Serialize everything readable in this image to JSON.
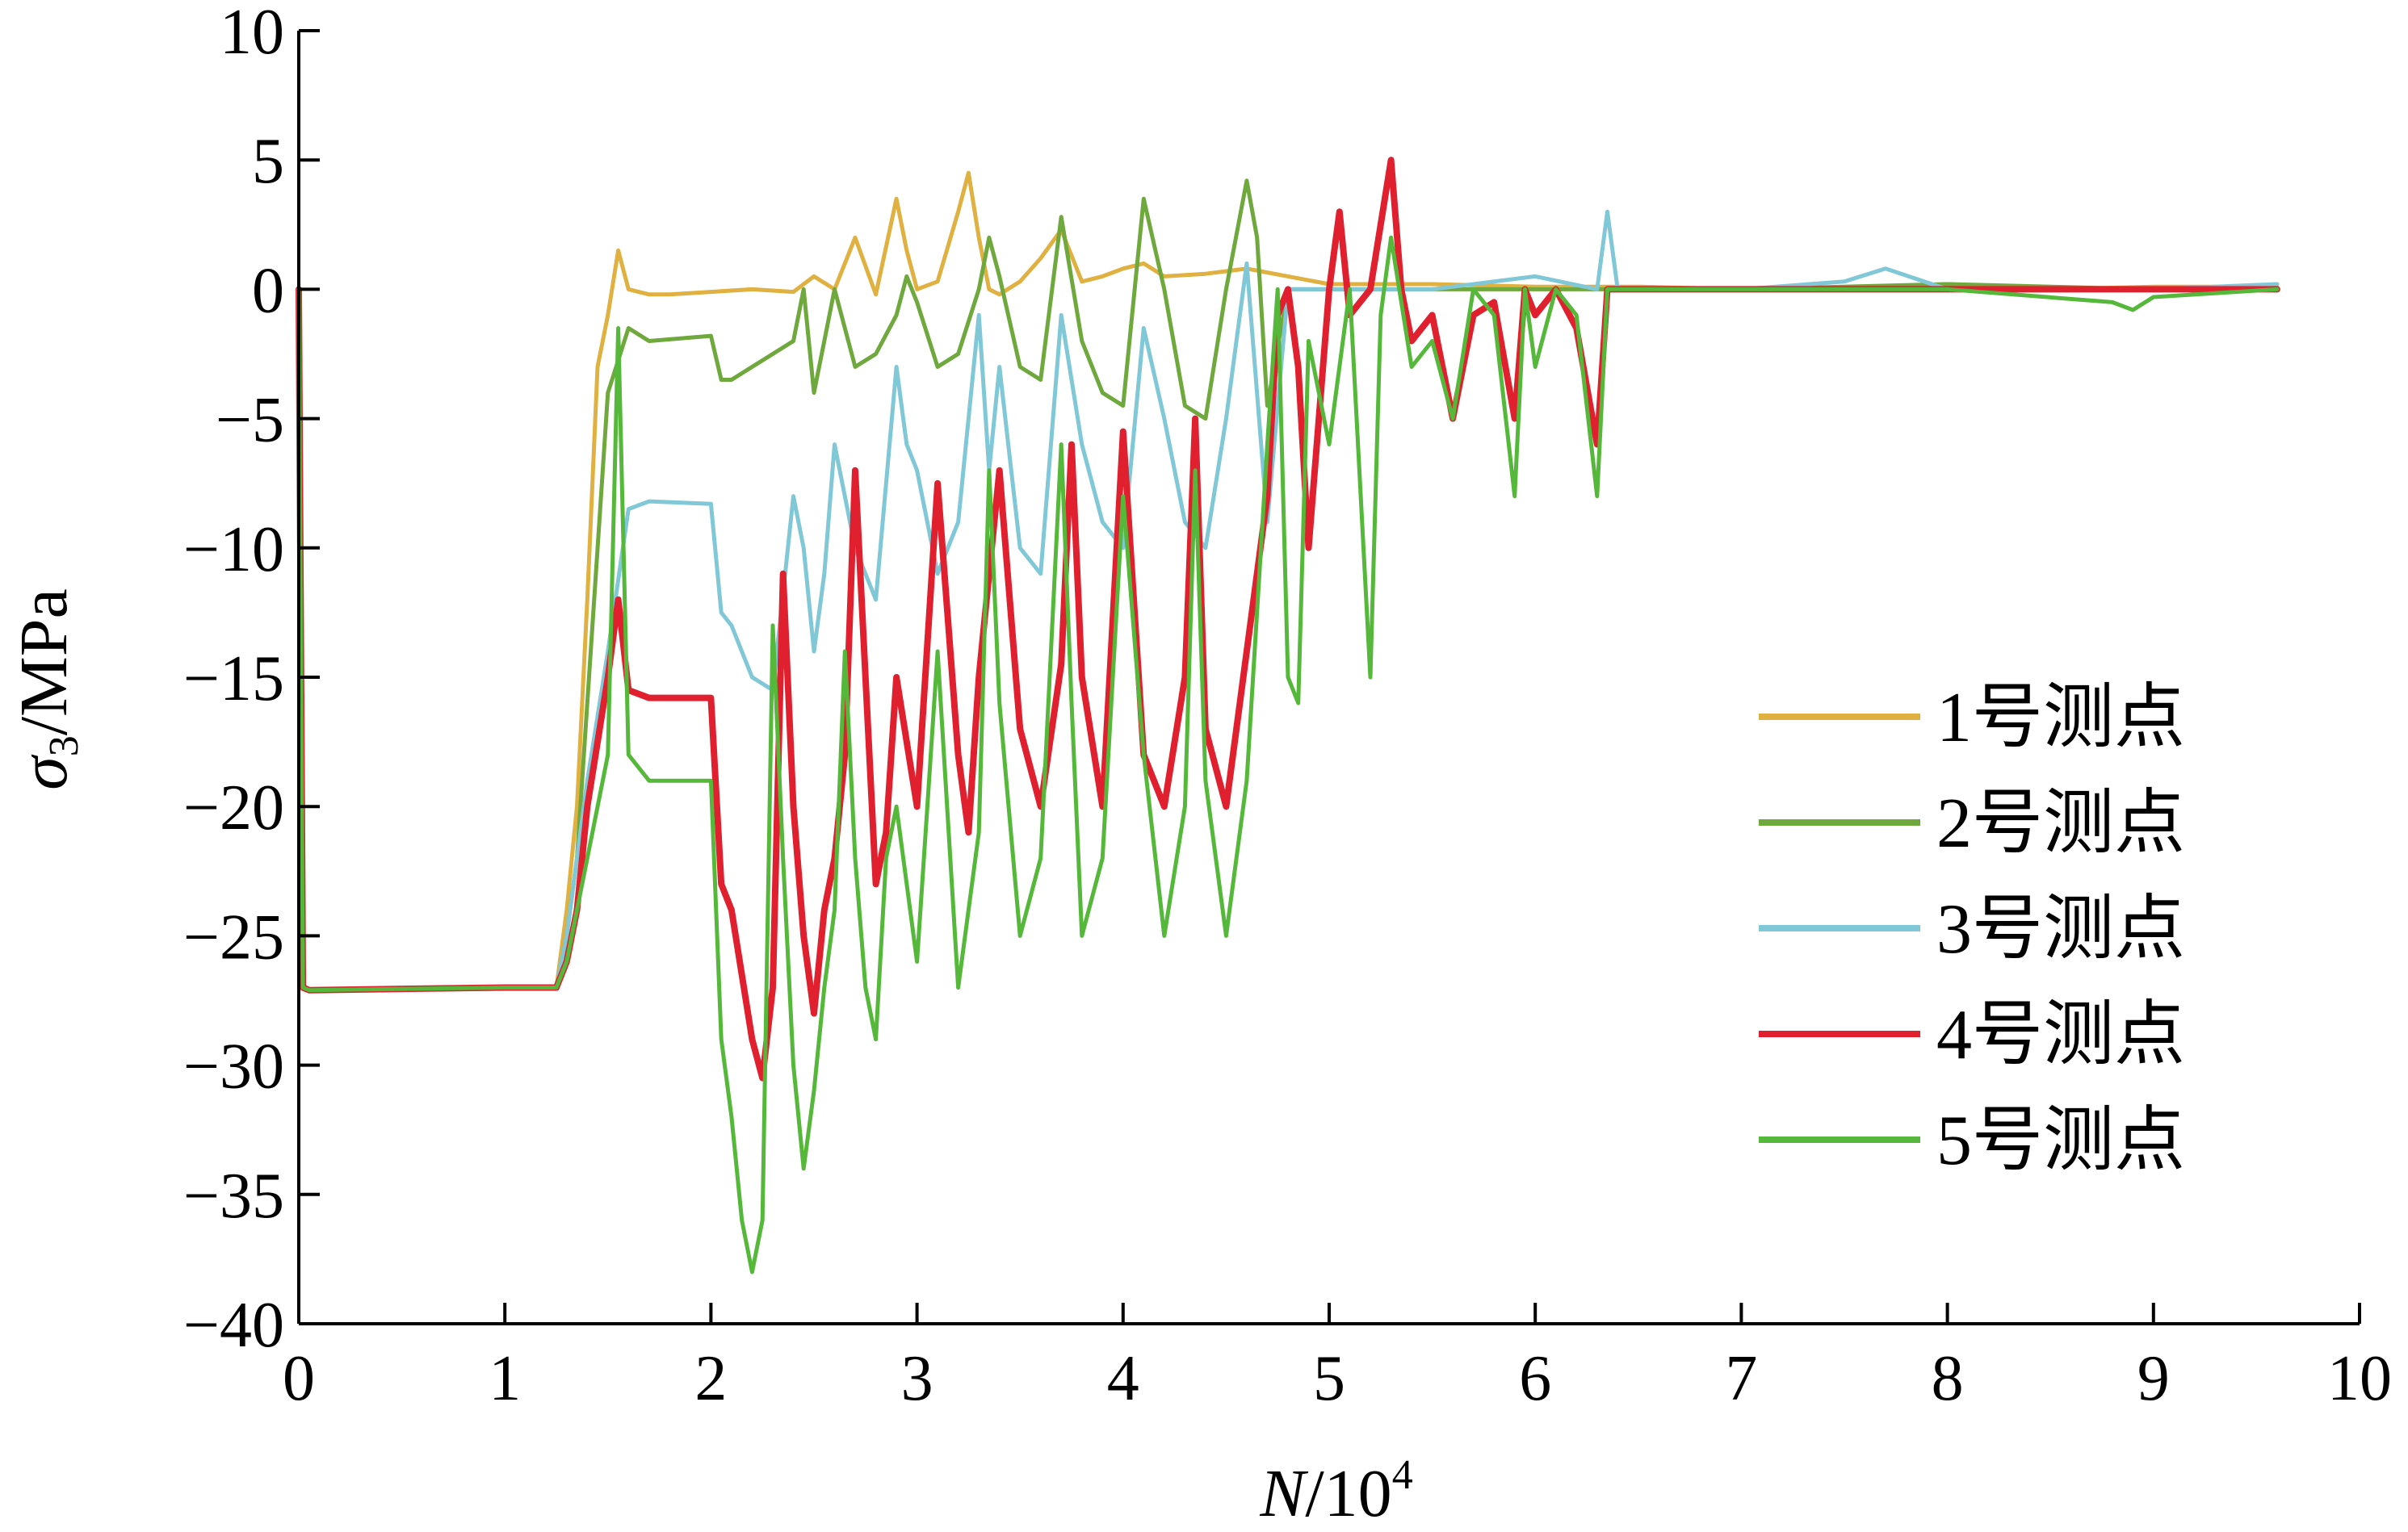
{
  "chart_data": {
    "type": "line",
    "xlabel": {
      "var": "N",
      "unit": "/10",
      "exp": "4"
    },
    "ylabel": {
      "var": "σ",
      "sub": "3",
      "unit": "/MPa"
    },
    "xlim": [
      0,
      10
    ],
    "ylim": [
      -40,
      10
    ],
    "xticks": [
      "0",
      "1",
      "2",
      "3",
      "4",
      "5",
      "6",
      "7",
      "8",
      "9",
      "10"
    ],
    "yticks": [
      "10",
      "5",
      "0",
      "−5",
      "−10",
      "−15",
      "−20",
      "−25",
      "−30",
      "−35",
      "−40"
    ],
    "grid": false,
    "legend_position": "right-middle",
    "series": [
      {
        "name": "1号测点",
        "color": "#E0B040",
        "x": [
          0,
          0.02,
          0.05,
          1.0,
          1.25,
          1.3,
          1.35,
          1.4,
          1.45,
          1.5,
          1.55,
          1.6,
          1.7,
          1.8,
          2.0,
          2.2,
          2.4,
          2.5,
          2.6,
          2.7,
          2.8,
          2.9,
          2.95,
          3.0,
          3.1,
          3.2,
          3.25,
          3.3,
          3.35,
          3.4,
          3.5,
          3.6,
          3.7,
          3.8,
          3.9,
          4.0,
          4.1,
          4.2,
          4.4,
          4.6,
          4.8,
          5.0,
          5.2,
          5.5,
          6.0,
          6.5,
          7.0,
          7.5,
          8.0,
          8.5,
          9.0,
          9.6
        ],
        "y": [
          0,
          -26.9,
          -27.1,
          -27.0,
          -27.0,
          -24,
          -20,
          -12,
          -3,
          -1,
          1.5,
          0,
          -0.2,
          -0.2,
          -0.1,
          0,
          -0.1,
          0.5,
          0,
          2.0,
          -0.2,
          3.5,
          1.5,
          0,
          0.3,
          3.0,
          4.5,
          2.0,
          0,
          -0.2,
          0.3,
          1.2,
          2.3,
          0.3,
          0.5,
          0.8,
          1.0,
          0.5,
          0.6,
          0.8,
          0.5,
          0.2,
          0.2,
          0.2,
          0.1,
          0.1,
          0,
          0,
          0.2,
          0,
          0.1,
          0.1
        ]
      },
      {
        "name": "2号测点",
        "color": "#6FA83C",
        "x": [
          0,
          0.02,
          0.05,
          1.0,
          1.25,
          1.3,
          1.35,
          1.4,
          1.5,
          1.6,
          1.7,
          2.0,
          2.05,
          2.1,
          2.2,
          2.3,
          2.4,
          2.45,
          2.5,
          2.55,
          2.6,
          2.7,
          2.8,
          2.9,
          2.95,
          3.0,
          3.1,
          3.2,
          3.3,
          3.35,
          3.4,
          3.5,
          3.6,
          3.7,
          3.8,
          3.9,
          4.0,
          4.1,
          4.2,
          4.3,
          4.4,
          4.5,
          4.6,
          4.65,
          4.7,
          4.8,
          5.0,
          5.5,
          6.0,
          6.5,
          7.0,
          8.0,
          9.0,
          9.6
        ],
        "y": [
          0,
          -27.0,
          -27.1,
          -27.0,
          -27.0,
          -25,
          -22,
          -16,
          -4,
          -1.5,
          -2.0,
          -1.8,
          -3.5,
          -3.5,
          -3.0,
          -2.5,
          -2.0,
          0,
          -4.0,
          -2.0,
          0,
          -3.0,
          -2.5,
          -1.0,
          0.5,
          -0.5,
          -3.0,
          -2.5,
          0,
          2.0,
          0.5,
          -3.0,
          -3.5,
          2.8,
          -2.0,
          -4.0,
          -4.5,
          3.5,
          0,
          -4.5,
          -5.0,
          0,
          4.2,
          2.0,
          -4.5,
          0,
          0,
          0,
          0,
          0,
          0,
          0.2,
          0,
          0
        ]
      },
      {
        "name": "3号测点",
        "color": "#80C8D8",
        "x": [
          0,
          0.02,
          0.05,
          1.0,
          1.25,
          1.3,
          1.35,
          1.4,
          1.5,
          1.6,
          1.7,
          2.0,
          2.05,
          2.1,
          2.2,
          2.3,
          2.4,
          2.45,
          2.5,
          2.55,
          2.6,
          2.7,
          2.8,
          2.9,
          2.95,
          3.0,
          3.1,
          3.2,
          3.3,
          3.35,
          3.4,
          3.5,
          3.6,
          3.7,
          3.8,
          3.9,
          4.0,
          4.1,
          4.2,
          4.3,
          4.4,
          4.5,
          4.6,
          4.7,
          4.8,
          5.0,
          5.5,
          6.0,
          6.3,
          6.35,
          6.4,
          6.5,
          7.0,
          7.5,
          7.7,
          8.0,
          9.0,
          9.6
        ],
        "y": [
          0,
          -27.0,
          -27.1,
          -27.0,
          -27.0,
          -25,
          -22,
          -19,
          -14,
          -8.5,
          -8.2,
          -8.3,
          -12.5,
          -13.0,
          -15.0,
          -15.5,
          -8.0,
          -10.0,
          -14.0,
          -11.0,
          -6.0,
          -10.0,
          -12.0,
          -3.0,
          -6.0,
          -7.0,
          -11.0,
          -9.0,
          -1.0,
          -7.0,
          -3.0,
          -10.0,
          -11.0,
          -1.0,
          -6.0,
          -9.0,
          -10.0,
          -1.5,
          -5.0,
          -9.0,
          -10.0,
          -5.0,
          1.0,
          -9.0,
          0,
          0,
          0,
          0.5,
          0,
          3.0,
          0,
          0,
          0,
          0.3,
          0.8,
          0,
          0,
          0.2
        ]
      },
      {
        "name": "4号测点",
        "color": "#E0202E",
        "x": [
          0,
          0.02,
          0.05,
          1.0,
          1.25,
          1.3,
          1.35,
          1.4,
          1.5,
          1.55,
          1.6,
          1.7,
          1.8,
          2.0,
          2.05,
          2.1,
          2.2,
          2.25,
          2.3,
          2.35,
          2.4,
          2.45,
          2.5,
          2.55,
          2.6,
          2.65,
          2.7,
          2.75,
          2.8,
          2.85,
          2.9,
          3.0,
          3.1,
          3.2,
          3.25,
          3.3,
          3.4,
          3.5,
          3.6,
          3.7,
          3.75,
          3.8,
          3.9,
          4.0,
          4.1,
          4.2,
          4.3,
          4.35,
          4.4,
          4.5,
          4.6,
          4.7,
          4.75,
          4.8,
          4.85,
          4.9,
          5.0,
          5.05,
          5.1,
          5.2,
          5.3,
          5.35,
          5.4,
          5.5,
          5.6,
          5.7,
          5.8,
          5.9,
          5.95,
          6.0,
          6.1,
          6.2,
          6.3,
          6.35,
          6.4,
          6.5,
          7.0,
          8.0,
          9.0,
          9.6
        ],
        "y": [
          0,
          -27.0,
          -27.1,
          -27.0,
          -27.0,
          -26,
          -24,
          -20,
          -15,
          -12,
          -15.5,
          -15.8,
          -15.8,
          -15.8,
          -23.0,
          -24.0,
          -29.0,
          -30.5,
          -27.0,
          -11.0,
          -20.0,
          -25.0,
          -28.0,
          -24.0,
          -22.0,
          -18.0,
          -7.0,
          -15.0,
          -23.0,
          -21.0,
          -15.0,
          -20.0,
          -7.5,
          -18.0,
          -21.0,
          -15.0,
          -7.0,
          -17.0,
          -20.0,
          -14.5,
          -6.0,
          -15.0,
          -20.0,
          -5.5,
          -18.0,
          -20.0,
          -15.0,
          -5.0,
          -17.0,
          -20.0,
          -14.0,
          -8.0,
          -1.0,
          0,
          -3.0,
          -10.0,
          0,
          3.0,
          -1.0,
          0,
          5.0,
          0,
          -2.0,
          -1.0,
          -5.0,
          -1.0,
          -0.5,
          -5.0,
          0,
          -1.0,
          0,
          -1.5,
          -6.0,
          0,
          0,
          0,
          0,
          0,
          0,
          0
        ]
      },
      {
        "name": "5号测点",
        "color": "#55B83A",
        "x": [
          0,
          0.02,
          0.05,
          1.0,
          1.25,
          1.3,
          1.35,
          1.4,
          1.5,
          1.55,
          1.6,
          1.7,
          1.8,
          2.0,
          2.05,
          2.1,
          2.15,
          2.2,
          2.25,
          2.3,
          2.35,
          2.4,
          2.45,
          2.5,
          2.55,
          2.6,
          2.65,
          2.7,
          2.75,
          2.8,
          2.85,
          2.9,
          3.0,
          3.05,
          3.1,
          3.2,
          3.3,
          3.35,
          3.4,
          3.5,
          3.6,
          3.7,
          3.75,
          3.8,
          3.9,
          4.0,
          4.1,
          4.2,
          4.3,
          4.35,
          4.4,
          4.5,
          4.6,
          4.7,
          4.75,
          4.8,
          4.85,
          4.9,
          5.0,
          5.1,
          5.2,
          5.25,
          5.3,
          5.4,
          5.5,
          5.6,
          5.7,
          5.8,
          5.9,
          5.95,
          6.0,
          6.1,
          6.2,
          6.3,
          6.35,
          6.4,
          6.5,
          7.0,
          8.0,
          8.8,
          8.9,
          9.0,
          9.6
        ],
        "y": [
          0,
          -27.0,
          -27.1,
          -27.0,
          -27.0,
          -26,
          -24,
          -22,
          -18,
          -1.5,
          -18.0,
          -19.0,
          -19.0,
          -19.0,
          -29.0,
          -32.0,
          -36.0,
          -38.0,
          -36.0,
          -13.0,
          -22.0,
          -30.0,
          -34.0,
          -31.0,
          -27.0,
          -24.0,
          -14.0,
          -22.0,
          -27.0,
          -29.0,
          -22.0,
          -20.0,
          -26.0,
          -20.0,
          -14.0,
          -27.0,
          -21.0,
          -7.0,
          -16.0,
          -25.0,
          -22.0,
          -6.0,
          -16.0,
          -25.0,
          -22.0,
          -8.0,
          -18.0,
          -25.0,
          -20.0,
          -7.0,
          -19.0,
          -25.0,
          -19.0,
          -6.0,
          0,
          -15.0,
          -16.0,
          -2.0,
          -6.0,
          0,
          -15.0,
          -1.0,
          2.0,
          -3.0,
          -2.0,
          -5.0,
          0,
          -1.0,
          -8.0,
          0,
          -3.0,
          0,
          -1.0,
          -8.0,
          0,
          0,
          0,
          0,
          0,
          -0.5,
          -0.8,
          -0.3,
          0
        ]
      }
    ]
  }
}
